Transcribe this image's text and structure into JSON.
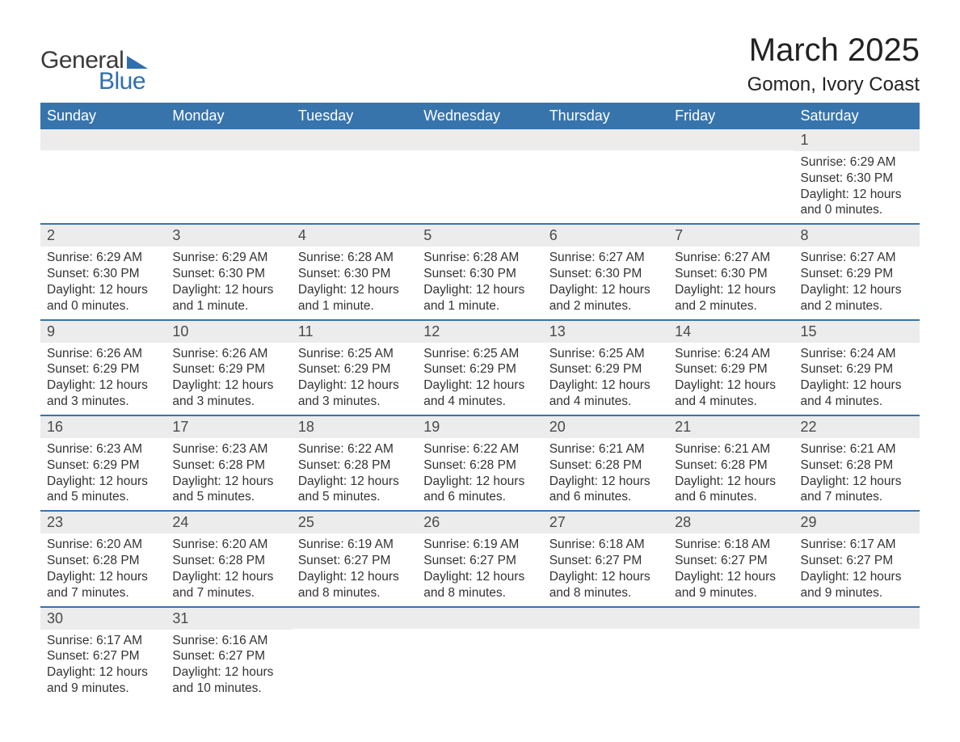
{
  "logo": {
    "word1": "General",
    "word2": "Blue"
  },
  "header": {
    "title": "March 2025",
    "location": "Gomon, Ivory Coast"
  },
  "colors": {
    "brand_blue": "#3874ac",
    "header_bg": "#3874ac",
    "header_text": "#ffffff",
    "daynum_bg": "#ececec",
    "body_text": "#333333",
    "page_bg": "#ffffff"
  },
  "fonts": {
    "title_size_pt": 30,
    "location_size_pt": 18,
    "header_size_pt": 14,
    "body_size_pt": 11.5
  },
  "calendar": {
    "columns": [
      "Sunday",
      "Monday",
      "Tuesday",
      "Wednesday",
      "Thursday",
      "Friday",
      "Saturday"
    ],
    "weeks": [
      [
        null,
        null,
        null,
        null,
        null,
        null,
        {
          "day": "1",
          "sunrise": "Sunrise: 6:29 AM",
          "sunset": "Sunset: 6:30 PM",
          "daylight": "Daylight: 12 hours and 0 minutes."
        }
      ],
      [
        {
          "day": "2",
          "sunrise": "Sunrise: 6:29 AM",
          "sunset": "Sunset: 6:30 PM",
          "daylight": "Daylight: 12 hours and 0 minutes."
        },
        {
          "day": "3",
          "sunrise": "Sunrise: 6:29 AM",
          "sunset": "Sunset: 6:30 PM",
          "daylight": "Daylight: 12 hours and 1 minute."
        },
        {
          "day": "4",
          "sunrise": "Sunrise: 6:28 AM",
          "sunset": "Sunset: 6:30 PM",
          "daylight": "Daylight: 12 hours and 1 minute."
        },
        {
          "day": "5",
          "sunrise": "Sunrise: 6:28 AM",
          "sunset": "Sunset: 6:30 PM",
          "daylight": "Daylight: 12 hours and 1 minute."
        },
        {
          "day": "6",
          "sunrise": "Sunrise: 6:27 AM",
          "sunset": "Sunset: 6:30 PM",
          "daylight": "Daylight: 12 hours and 2 minutes."
        },
        {
          "day": "7",
          "sunrise": "Sunrise: 6:27 AM",
          "sunset": "Sunset: 6:30 PM",
          "daylight": "Daylight: 12 hours and 2 minutes."
        },
        {
          "day": "8",
          "sunrise": "Sunrise: 6:27 AM",
          "sunset": "Sunset: 6:29 PM",
          "daylight": "Daylight: 12 hours and 2 minutes."
        }
      ],
      [
        {
          "day": "9",
          "sunrise": "Sunrise: 6:26 AM",
          "sunset": "Sunset: 6:29 PM",
          "daylight": "Daylight: 12 hours and 3 minutes."
        },
        {
          "day": "10",
          "sunrise": "Sunrise: 6:26 AM",
          "sunset": "Sunset: 6:29 PM",
          "daylight": "Daylight: 12 hours and 3 minutes."
        },
        {
          "day": "11",
          "sunrise": "Sunrise: 6:25 AM",
          "sunset": "Sunset: 6:29 PM",
          "daylight": "Daylight: 12 hours and 3 minutes."
        },
        {
          "day": "12",
          "sunrise": "Sunrise: 6:25 AM",
          "sunset": "Sunset: 6:29 PM",
          "daylight": "Daylight: 12 hours and 4 minutes."
        },
        {
          "day": "13",
          "sunrise": "Sunrise: 6:25 AM",
          "sunset": "Sunset: 6:29 PM",
          "daylight": "Daylight: 12 hours and 4 minutes."
        },
        {
          "day": "14",
          "sunrise": "Sunrise: 6:24 AM",
          "sunset": "Sunset: 6:29 PM",
          "daylight": "Daylight: 12 hours and 4 minutes."
        },
        {
          "day": "15",
          "sunrise": "Sunrise: 6:24 AM",
          "sunset": "Sunset: 6:29 PM",
          "daylight": "Daylight: 12 hours and 4 minutes."
        }
      ],
      [
        {
          "day": "16",
          "sunrise": "Sunrise: 6:23 AM",
          "sunset": "Sunset: 6:29 PM",
          "daylight": "Daylight: 12 hours and 5 minutes."
        },
        {
          "day": "17",
          "sunrise": "Sunrise: 6:23 AM",
          "sunset": "Sunset: 6:28 PM",
          "daylight": "Daylight: 12 hours and 5 minutes."
        },
        {
          "day": "18",
          "sunrise": "Sunrise: 6:22 AM",
          "sunset": "Sunset: 6:28 PM",
          "daylight": "Daylight: 12 hours and 5 minutes."
        },
        {
          "day": "19",
          "sunrise": "Sunrise: 6:22 AM",
          "sunset": "Sunset: 6:28 PM",
          "daylight": "Daylight: 12 hours and 6 minutes."
        },
        {
          "day": "20",
          "sunrise": "Sunrise: 6:21 AM",
          "sunset": "Sunset: 6:28 PM",
          "daylight": "Daylight: 12 hours and 6 minutes."
        },
        {
          "day": "21",
          "sunrise": "Sunrise: 6:21 AM",
          "sunset": "Sunset: 6:28 PM",
          "daylight": "Daylight: 12 hours and 6 minutes."
        },
        {
          "day": "22",
          "sunrise": "Sunrise: 6:21 AM",
          "sunset": "Sunset: 6:28 PM",
          "daylight": "Daylight: 12 hours and 7 minutes."
        }
      ],
      [
        {
          "day": "23",
          "sunrise": "Sunrise: 6:20 AM",
          "sunset": "Sunset: 6:28 PM",
          "daylight": "Daylight: 12 hours and 7 minutes."
        },
        {
          "day": "24",
          "sunrise": "Sunrise: 6:20 AM",
          "sunset": "Sunset: 6:28 PM",
          "daylight": "Daylight: 12 hours and 7 minutes."
        },
        {
          "day": "25",
          "sunrise": "Sunrise: 6:19 AM",
          "sunset": "Sunset: 6:27 PM",
          "daylight": "Daylight: 12 hours and 8 minutes."
        },
        {
          "day": "26",
          "sunrise": "Sunrise: 6:19 AM",
          "sunset": "Sunset: 6:27 PM",
          "daylight": "Daylight: 12 hours and 8 minutes."
        },
        {
          "day": "27",
          "sunrise": "Sunrise: 6:18 AM",
          "sunset": "Sunset: 6:27 PM",
          "daylight": "Daylight: 12 hours and 8 minutes."
        },
        {
          "day": "28",
          "sunrise": "Sunrise: 6:18 AM",
          "sunset": "Sunset: 6:27 PM",
          "daylight": "Daylight: 12 hours and 9 minutes."
        },
        {
          "day": "29",
          "sunrise": "Sunrise: 6:17 AM",
          "sunset": "Sunset: 6:27 PM",
          "daylight": "Daylight: 12 hours and 9 minutes."
        }
      ],
      [
        {
          "day": "30",
          "sunrise": "Sunrise: 6:17 AM",
          "sunset": "Sunset: 6:27 PM",
          "daylight": "Daylight: 12 hours and 9 minutes."
        },
        {
          "day": "31",
          "sunrise": "Sunrise: 6:16 AM",
          "sunset": "Sunset: 6:27 PM",
          "daylight": "Daylight: 12 hours and 10 minutes."
        },
        null,
        null,
        null,
        null,
        null
      ]
    ]
  }
}
